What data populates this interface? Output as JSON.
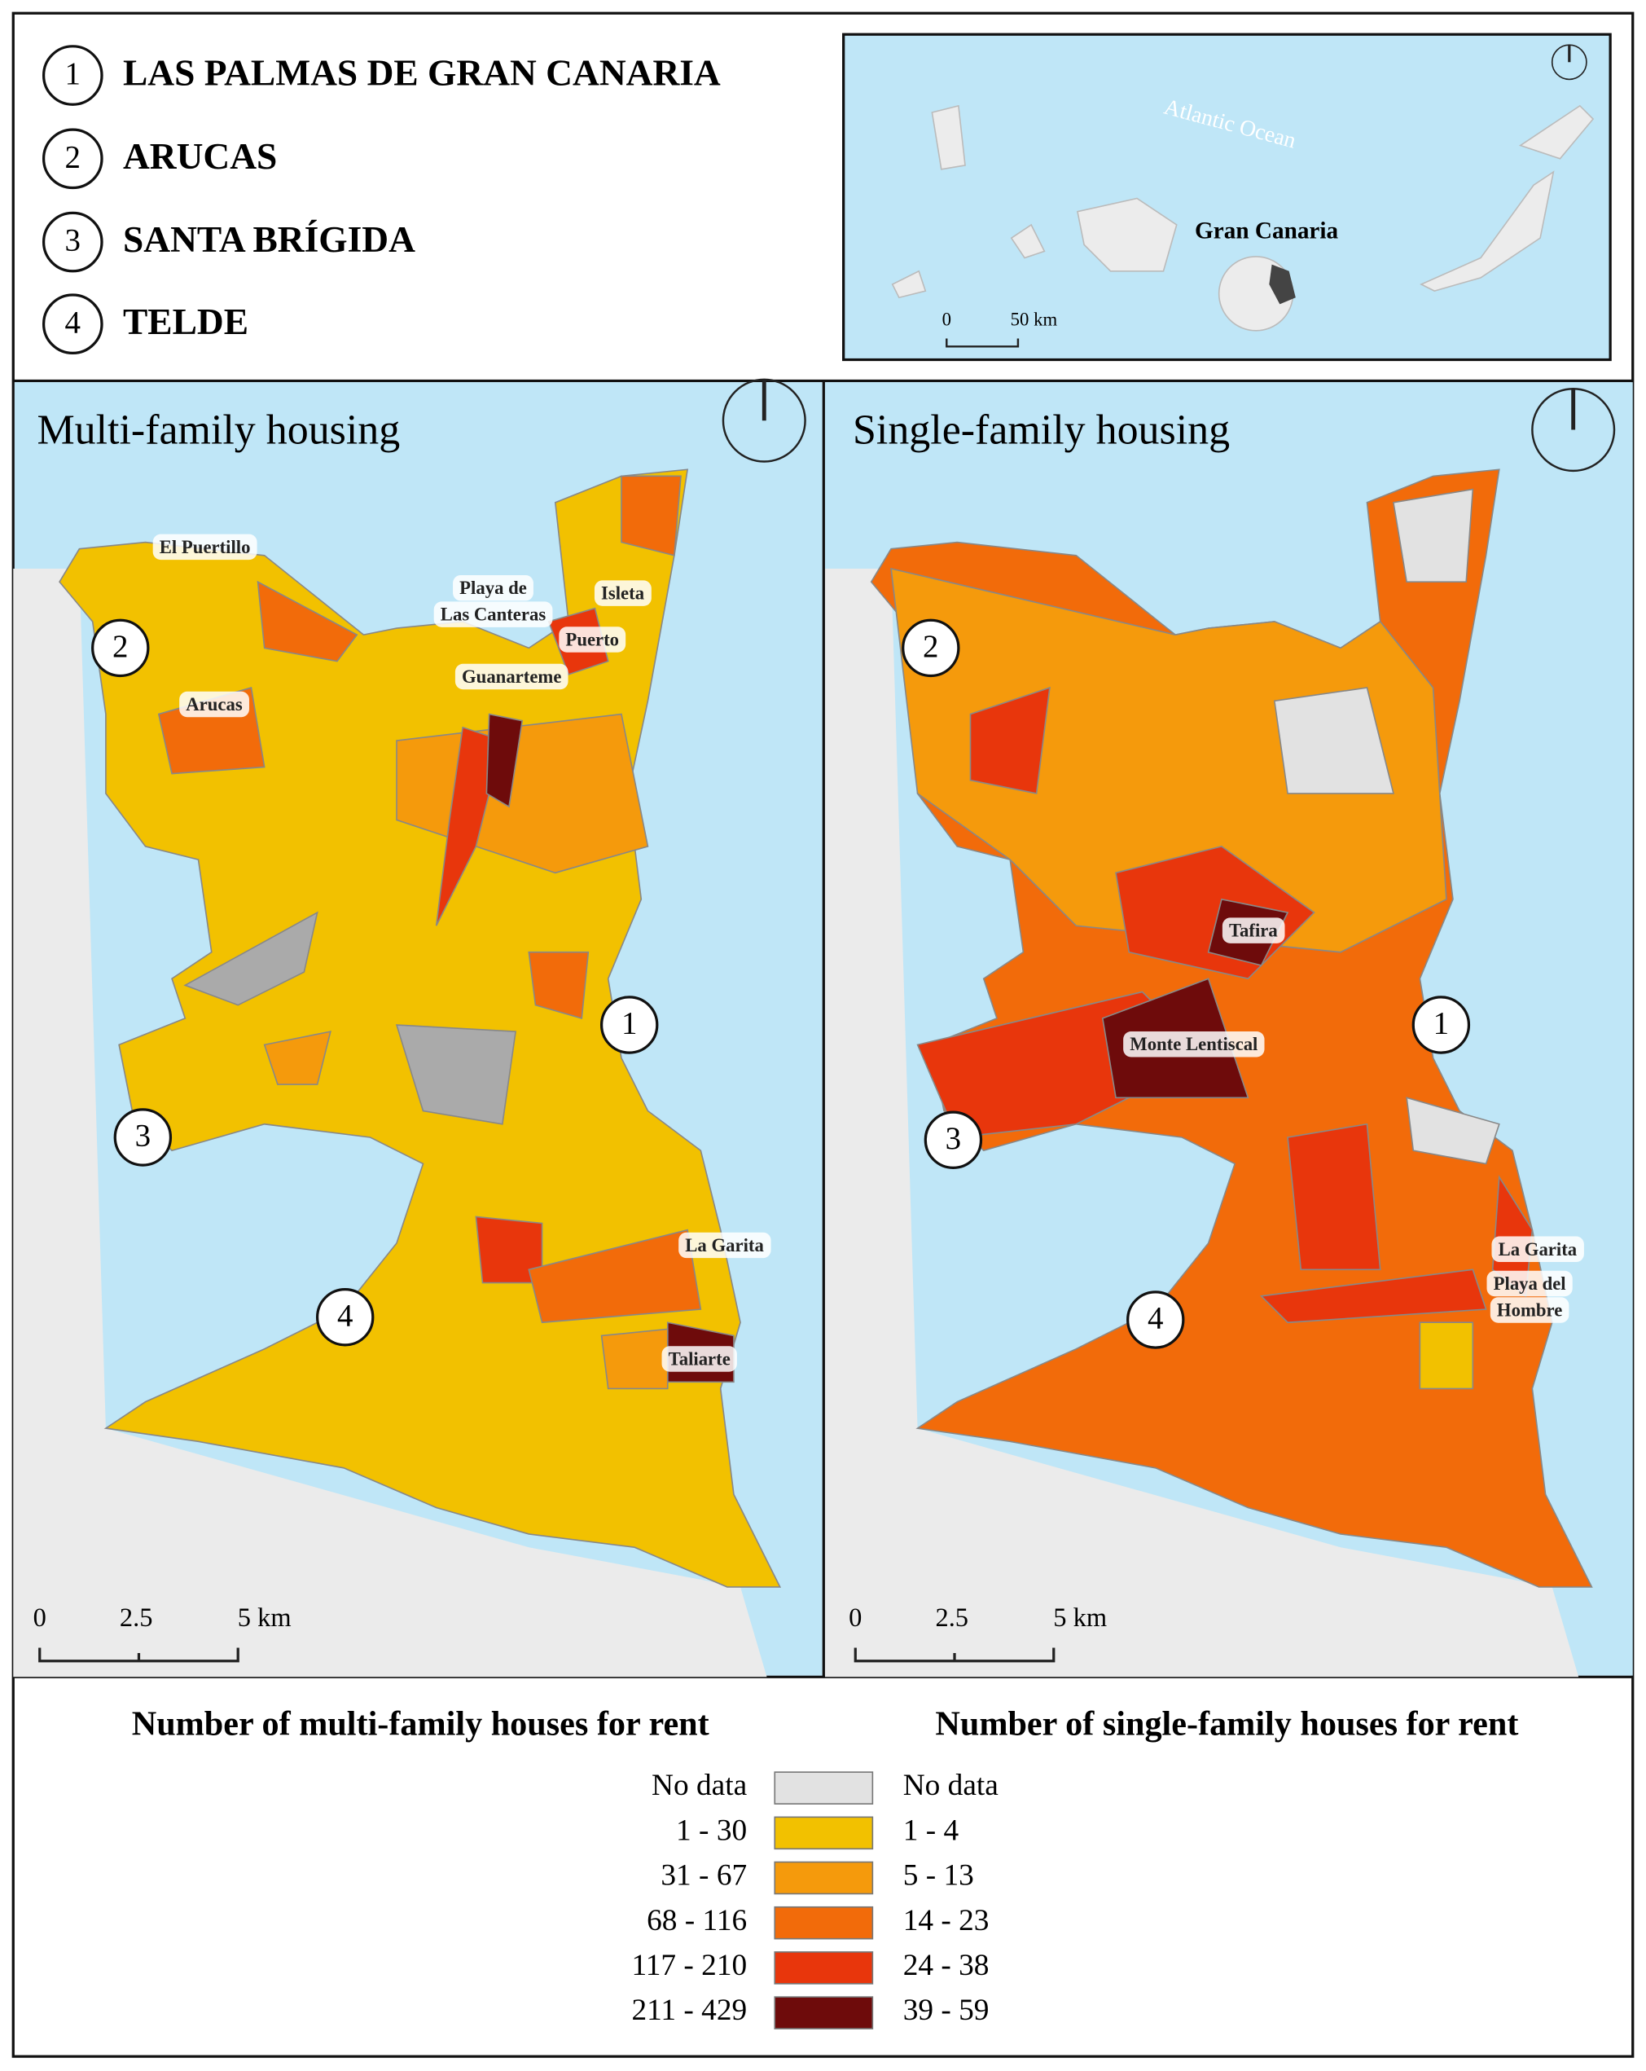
{
  "municipalities": [
    {
      "number": "1",
      "name": "LAS PALMAS DE GRAN CANARIA"
    },
    {
      "number": "2",
      "name": "ARUCAS"
    },
    {
      "number": "3",
      "name": "SANTA BRÍGIDA"
    },
    {
      "number": "4",
      "name": "TELDE"
    }
  ],
  "inset": {
    "ocean": "Atlantic Ocean",
    "island": "Gran Canaria",
    "scale": [
      "0",
      "50 km"
    ]
  },
  "panels": [
    {
      "title": "Multi-family housing",
      "places": [
        [
          "El Puertillo"
        ],
        [
          "Playa de",
          "Las Canteras"
        ],
        [
          "Isleta"
        ],
        [
          "Puerto"
        ],
        [
          "Guanarteme"
        ],
        [
          "Arucas"
        ],
        [
          "La Garita"
        ],
        [
          "Taliarte"
        ]
      ],
      "scale": [
        "0",
        "2.5",
        "5 km"
      ]
    },
    {
      "title": "Single-family housing",
      "places": [
        [
          "Tafira"
        ],
        [
          "Monte Lentiscal"
        ],
        [
          "La Garita"
        ],
        [
          "Playa del",
          "Hombre"
        ]
      ],
      "scale": [
        "0",
        "2.5",
        "5 km"
      ]
    }
  ],
  "legend": {
    "multi_title": "Number of multi-family houses for rent",
    "single_title": "Number of single-family houses for rent",
    "classes": [
      {
        "multi": "No data",
        "single": "No data",
        "color": "#e2e2e2"
      },
      {
        "multi": "1 - 30",
        "single": "1 - 4",
        "color": "#f2c100"
      },
      {
        "multi": "31 - 67",
        "single": "5 - 13",
        "color": "#f59a0c"
      },
      {
        "multi": "68 - 116",
        "single": "14 - 23",
        "color": "#f26b0a"
      },
      {
        "multi": "117 - 210",
        "single": "24 - 38",
        "color": "#e8360c"
      },
      {
        "multi": "211 - 429",
        "single": "39 - 59",
        "color": "#6e0b0b"
      }
    ]
  }
}
